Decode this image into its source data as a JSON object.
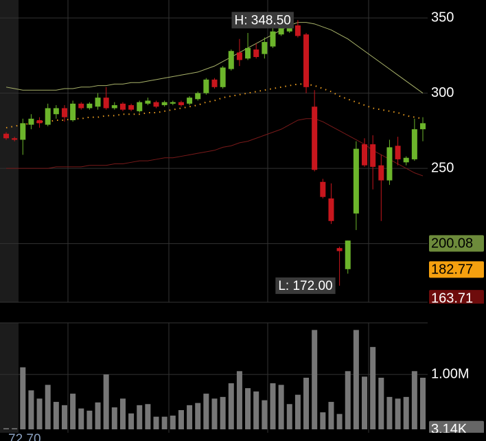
{
  "chart_data": [
    {
      "type": "candlestick",
      "open": [
        273,
        270,
        269,
        279,
        282,
        279,
        286,
        290,
        282,
        293,
        290,
        291,
        297,
        290,
        293,
        292,
        288,
        293,
        294,
        292,
        293,
        294,
        293,
        296,
        300,
        309,
        304,
        316,
        327,
        323,
        329,
        326,
        331,
        339,
        341,
        345,
        339,
        291,
        241,
        230,
        197,
        183,
        220,
        266,
        266,
        252,
        242,
        265,
        254,
        256,
        276
      ],
      "high": [
        274,
        271,
        283,
        286,
        284,
        293,
        292,
        292,
        295,
        294,
        294,
        300,
        304,
        294,
        294,
        293,
        295,
        297,
        295,
        295,
        295,
        295,
        298,
        301,
        310,
        310,
        318,
        329,
        336,
        340,
        333,
        337,
        344,
        346,
        347,
        348.5,
        340,
        302,
        243,
        240,
        198,
        202,
        268,
        270,
        272,
        259,
        269,
        271,
        258,
        283,
        284
      ],
      "low": [
        269,
        268,
        259,
        276,
        277,
        278,
        283,
        281,
        281,
        289,
        289,
        289,
        289,
        289,
        288,
        288,
        287,
        292,
        290,
        291,
        292,
        291,
        292,
        295,
        299,
        303,
        303,
        315,
        318,
        322,
        323,
        323,
        330,
        338,
        340,
        337,
        300,
        248,
        230,
        213,
        172,
        180,
        209,
        251,
        236,
        215,
        239,
        252,
        252,
        255,
        268
      ],
      "close": [
        270,
        269,
        280,
        283,
        280,
        290,
        290,
        284,
        293,
        290,
        293,
        297,
        290,
        292,
        289,
        289,
        294,
        295,
        291,
        294,
        294,
        292,
        297,
        300,
        309,
        304,
        317,
        328,
        322,
        330,
        324,
        334,
        341,
        344,
        346,
        338,
        304,
        249,
        231,
        215,
        195,
        202,
        263,
        252,
        251,
        242,
        264,
        256,
        257,
        276,
        280
      ],
      "up_color": "#6cb52b",
      "down_color": "#c8161d",
      "ylim": [
        161,
        361.9
      ],
      "yticks": [
        200,
        250,
        300,
        350
      ],
      "grid": true,
      "overlays": [
        {
          "color": "#a9b36a",
          "style": "solid",
          "values": [
            304,
            303,
            302,
            302,
            302,
            302,
            302,
            303,
            303,
            304,
            304,
            305,
            305,
            306,
            306,
            307,
            307,
            308,
            309,
            310,
            311,
            312,
            313,
            314,
            316,
            318,
            321,
            324,
            327,
            330,
            333,
            336,
            339,
            342,
            345,
            347,
            347,
            346,
            344,
            342,
            339,
            336,
            332,
            328,
            324,
            320,
            316,
            312,
            308,
            304,
            300
          ]
        },
        {
          "color": "#f0a020",
          "style": "dotted",
          "values": [
            277,
            278,
            279,
            280,
            281,
            281,
            282,
            282,
            283,
            283,
            284,
            284,
            285,
            285,
            286,
            286,
            286,
            287,
            287,
            288,
            289,
            290,
            291,
            292,
            294,
            295,
            297,
            298,
            299,
            300,
            301,
            302,
            303,
            304,
            305,
            306,
            306,
            305,
            303,
            301,
            298,
            296,
            294,
            292,
            290,
            289,
            288,
            287,
            285,
            284,
            283
          ]
        },
        {
          "color": "#7a1a1a",
          "style": "solid",
          "values": [
            250,
            250,
            250,
            250,
            250,
            250,
            251,
            251,
            251,
            251,
            252,
            252,
            252,
            253,
            253,
            254,
            255,
            255,
            256,
            257,
            257,
            258,
            259,
            260,
            261,
            262,
            264,
            265,
            267,
            268,
            270,
            272,
            274,
            276,
            279,
            282,
            283,
            283,
            281,
            278,
            275,
            272,
            269,
            266,
            262,
            259,
            256,
            253,
            250,
            247,
            245
          ]
        }
      ],
      "annotations": [
        {
          "text": "H: 348.50",
          "value": 348.5,
          "anchor": "high"
        },
        {
          "text": "L: 172.00",
          "value": 172,
          "anchor": "low"
        }
      ],
      "price_tags": [
        {
          "value": 200.08,
          "color": "#6d8b3b",
          "text_color": "#000000"
        },
        {
          "value": 182.77,
          "color": "#f5a00f",
          "text_color": "#000000"
        },
        {
          "value": 163.71,
          "color": "#6e0c0c",
          "text_color": "#ffffff"
        }
      ]
    },
    {
      "type": "bar",
      "values": [
        0.02,
        0.02,
        1.13,
        0.71,
        0.56,
        0.81,
        0.5,
        0.44,
        0.65,
        0.38,
        0.34,
        0.49,
        1.0,
        0.4,
        0.56,
        0.29,
        0.44,
        0.46,
        0.23,
        0.23,
        0.25,
        0.35,
        0.44,
        0.48,
        0.65,
        0.56,
        0.59,
        0.84,
        1.06,
        0.75,
        0.69,
        0.53,
        0.84,
        0.81,
        0.46,
        0.63,
        0.94,
        1.81,
        0.31,
        0.5,
        0.28,
        1.06,
        1.81,
        0.96,
        1.5,
        0.94,
        0.59,
        0.56,
        0.59,
        1.06,
        0.94
      ],
      "color": "#777777",
      "ylim": [
        0,
        1.94
      ],
      "yticks": [
        {
          "value": 1,
          "label": "1.00M"
        }
      ],
      "grid": true,
      "value_tag": {
        "value": 0.00314,
        "label": "3.14K",
        "color": "#666666"
      }
    }
  ],
  "indicator_label": "72.70"
}
